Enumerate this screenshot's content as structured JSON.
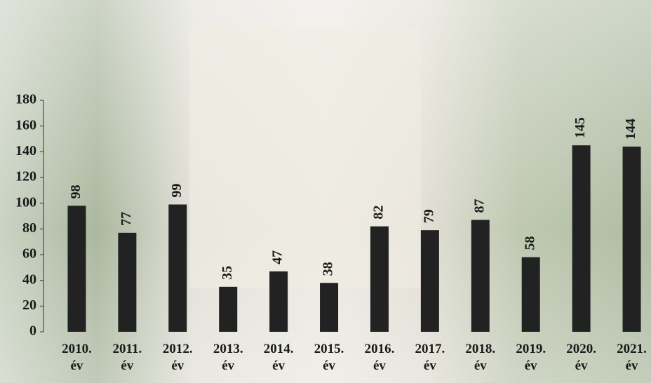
{
  "chart_data": {
    "type": "bar",
    "categories": [
      "2010. év",
      "2011. év",
      "2012. év",
      "2013. év",
      "2014. év",
      "2015. év",
      "2016. év",
      "2017. év",
      "2018. év",
      "2019. év",
      "2020. év",
      "2021. év"
    ],
    "values": [
      98,
      77,
      99,
      35,
      47,
      38,
      82,
      79,
      87,
      58,
      145,
      144
    ],
    "color": "#222222",
    "ylim": [
      0,
      180
    ],
    "yticks": [
      0,
      20,
      40,
      60,
      80,
      100,
      120,
      140,
      160,
      180
    ],
    "grid": false
  }
}
